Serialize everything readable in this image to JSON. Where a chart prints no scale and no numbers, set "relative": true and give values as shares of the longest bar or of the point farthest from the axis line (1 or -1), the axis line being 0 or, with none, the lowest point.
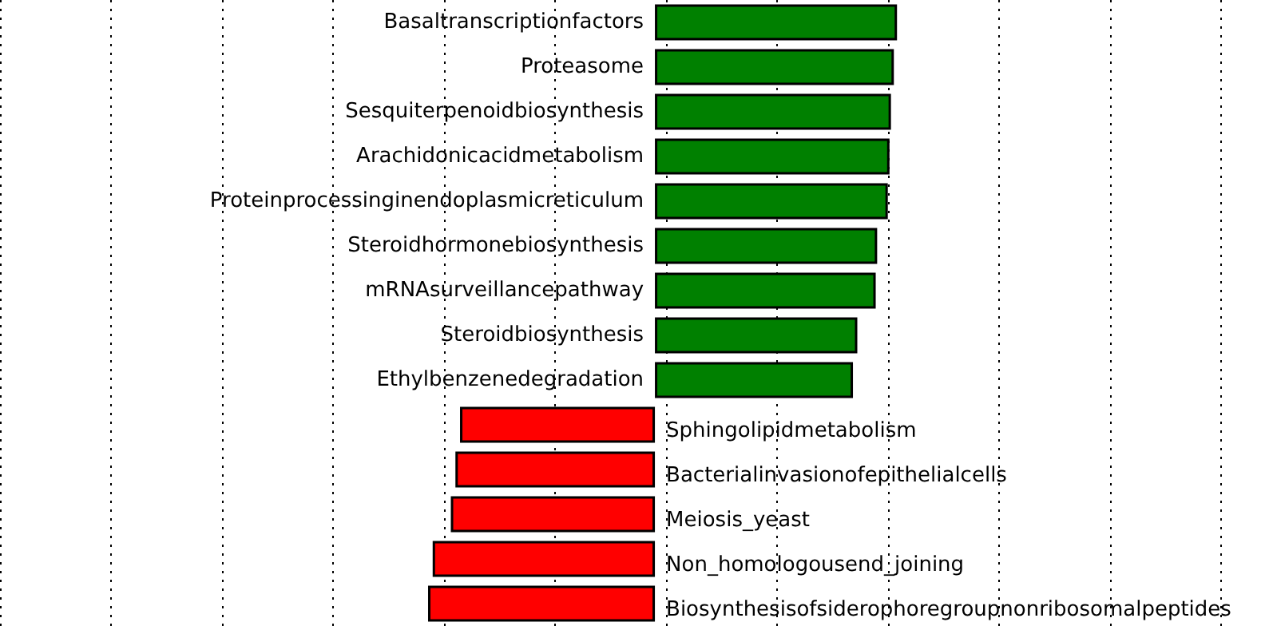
{
  "chart_data": {
    "type": "bar",
    "orientation": "horizontal",
    "relative": true,
    "grid": "x",
    "categories": [
      "Basaltranscriptionfactors",
      "Proteasome",
      "Sesquiterpenoidbiosynthesis",
      "Arachidonicacidmetabolism",
      "Proteinprocessinginendoplasmicreticulum",
      "Steroidhormonebiosynthesis",
      "mRNAsurveillancepathway",
      "Steroidbiosynthesis",
      "Ethylbenzenedegradation",
      "Sphingolipidmetabolism",
      "Bacterialinvasionofepithelialcells",
      "Meiosis_yeast",
      "Non_homologousend_joining",
      "Biosynthesisofsiderophoregroupnonribosomalpeptides"
    ],
    "values": [
      1,
      0.987,
      0.975,
      0.969,
      0.962,
      0.918,
      0.912,
      0.836,
      0.818,
      -0.805,
      -0.824,
      -0.843,
      -0.918,
      -0.937
    ],
    "colors": [
      "#008000",
      "#008000",
      "#008000",
      "#008000",
      "#008000",
      "#008000",
      "#008000",
      "#008000",
      "#008000",
      "#ff0000",
      "#ff0000",
      "#ff0000",
      "#ff0000",
      "#ff0000"
    ]
  }
}
